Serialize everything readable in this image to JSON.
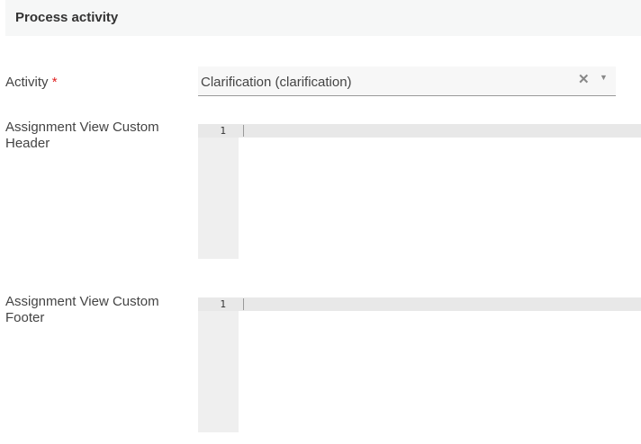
{
  "section": {
    "title": "Process activity"
  },
  "activity": {
    "label": "Activity",
    "required_mark": "*",
    "value": "Clarification (clarification)",
    "clear_icon": "✕",
    "dropdown_icon": "▼"
  },
  "header_editor": {
    "label": "Assignment View Custom Header",
    "line_number": "1"
  },
  "footer_editor": {
    "label": "Assignment View Custom Footer",
    "line_number": "1"
  }
}
